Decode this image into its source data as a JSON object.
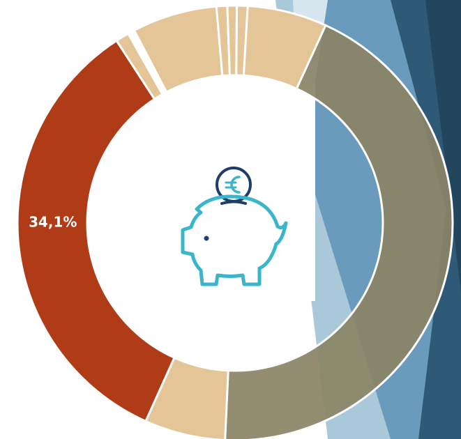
{
  "chart_data": {
    "type": "donut",
    "values": [
      43.9,
      6.0,
      34.1,
      1.0,
      0.5,
      6.3,
      0.8,
      0.7,
      0.8,
      5.9
    ],
    "value_labels": [
      null,
      null,
      "34,1%",
      null,
      null,
      null,
      null,
      null,
      null,
      null
    ],
    "colors": [
      "#8a8466",
      "#e3c598",
      "#b03c17",
      "#e3c598",
      "#ffffff",
      "#e3c598",
      "#e3c598",
      "#e3c598",
      "#e3c598",
      "#e3c598"
    ]
  }
}
